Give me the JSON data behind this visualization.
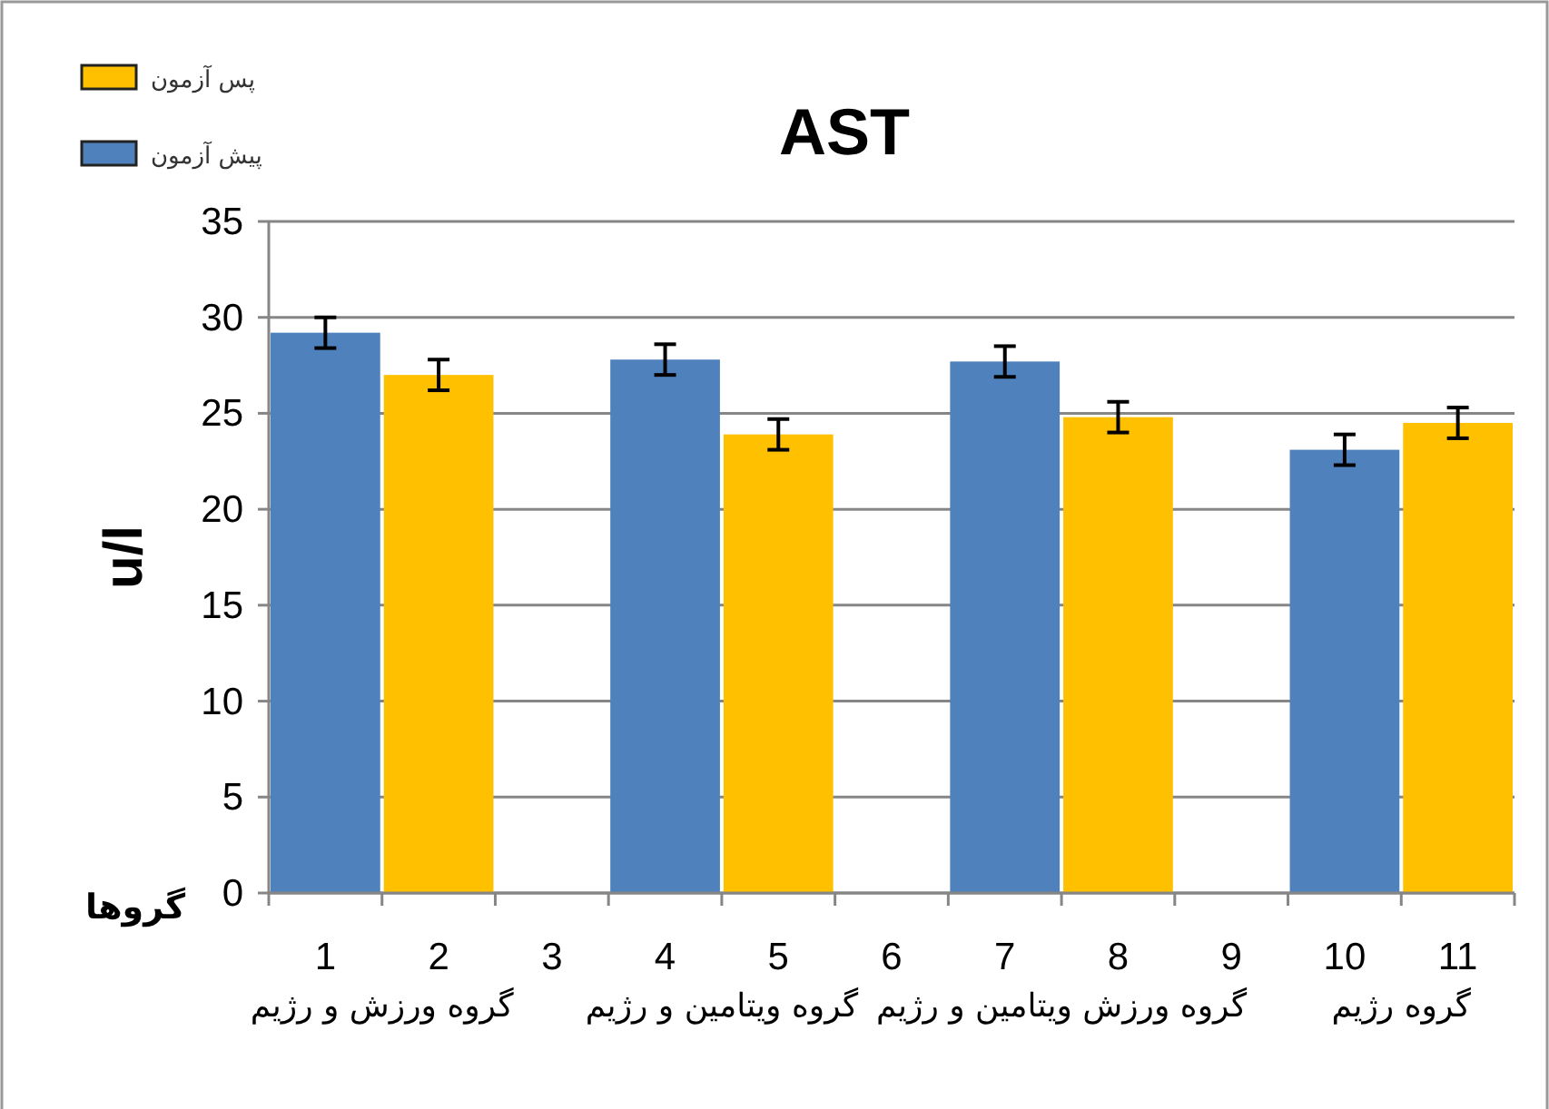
{
  "chart_data": {
    "type": "bar",
    "title": "AST",
    "xlabel": "گروها",
    "ylabel": "u/l",
    "categories": [
      "1",
      "2",
      "3",
      "4",
      "5",
      "6",
      "7",
      "8",
      "9",
      "10",
      "11"
    ],
    "series": [
      {
        "name": "پیش آزمون",
        "color": "#4f81bd",
        "values": [
          29.2,
          null,
          null,
          27.8,
          null,
          null,
          27.7,
          null,
          null,
          23.1,
          null
        ],
        "errors": [
          0.8,
          null,
          null,
          0.8,
          null,
          null,
          0.8,
          null,
          null,
          0.8,
          null
        ]
      },
      {
        "name": "پس آزمون",
        "color": "#ffc000",
        "values": [
          null,
          27.0,
          null,
          null,
          23.9,
          null,
          null,
          24.8,
          null,
          null,
          24.5
        ],
        "errors": [
          null,
          0.8,
          null,
          null,
          0.8,
          null,
          null,
          0.8,
          null,
          null,
          0.8
        ]
      }
    ],
    "ylim": [
      0,
      35
    ],
    "yticks": [
      0,
      5,
      10,
      15,
      20,
      25,
      30,
      35
    ],
    "grid": "y",
    "legend": "top left",
    "annotations": [
      "گروه ورزش و رژیم",
      "گروه ویتامین و رژیم",
      "گروه ورزش ویتامین و رژیم",
      "گروه رژیم"
    ]
  }
}
